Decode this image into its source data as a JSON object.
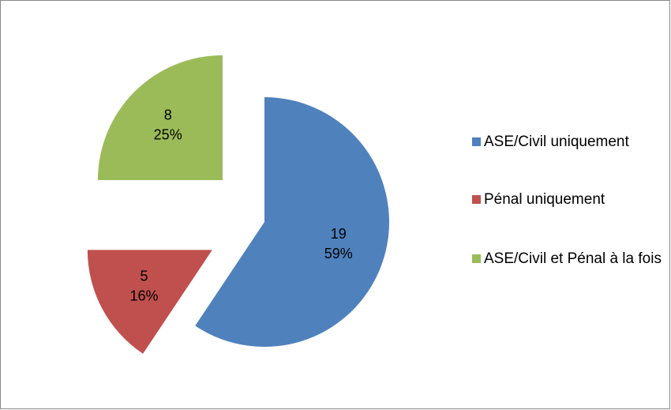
{
  "chart_data": {
    "type": "pie",
    "categories": [
      "ASE/Civil uniquement",
      "Pénal uniquement",
      "ASE/Civil et Pénal à la fois"
    ],
    "values": [
      19,
      5,
      8
    ],
    "percent_labels": [
      "59%",
      "16%",
      "25%"
    ],
    "colors": [
      "#4f81bd",
      "#c0504d",
      "#9bbb59"
    ],
    "legend": "right"
  }
}
